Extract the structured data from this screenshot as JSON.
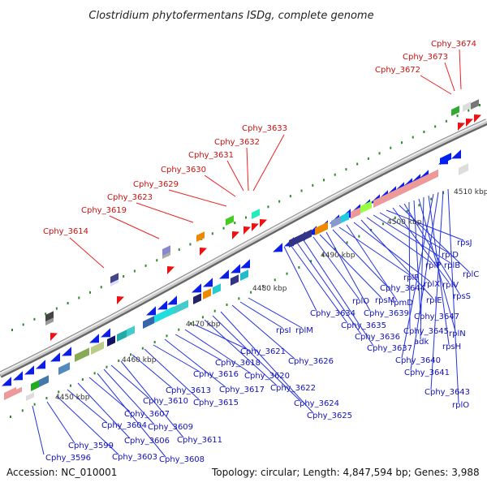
{
  "title": "Clostridium phytofermentans ISDg, complete genome",
  "footer": {
    "accession": "Accession: NC_010001",
    "summary": "Topology: circular; Length: 4,847,594 bp; Genes: 3,988"
  },
  "ticks": [
    "4450 kbp",
    "4460 kbp",
    "4470 kbp",
    "4480 kbp",
    "4490 kbp",
    "4500 kbp",
    "4510 kbp"
  ],
  "labels_bottom": [
    "Cphy_3596",
    "Cphy_3599",
    "Cphy_3603",
    "Cphy_3604",
    "Cphy_3606",
    "Cphy_3607",
    "Cphy_3608",
    "Cphy_3609",
    "Cphy_3610",
    "Cphy_3611",
    "Cphy_3613",
    "Cphy_3615",
    "Cphy_3616",
    "Cphy_3617",
    "Cphy_3618",
    "Cphy_3620",
    "Cphy_3621",
    "Cphy_3622",
    "Cphy_3624",
    "Cphy_3625",
    "Cphy_3626",
    "rpsI",
    "rplM",
    "Cphy_3634",
    "Cphy_3635",
    "Cphy_3636",
    "Cphy_3637",
    "rplO",
    "rpsM",
    "Cphy_3639",
    "Cphy_3644",
    "rplF",
    "rpmD",
    "rplX",
    "rplE",
    "rplP",
    "rplB",
    "rplD",
    "rpsJ",
    "rplV",
    "rplC",
    "rpsS",
    "Cphy_3645",
    "Cphy_3647",
    "rplN",
    "adk",
    "rpsH",
    "Cphy_3640",
    "Cphy_3641",
    "Cphy_3643",
    "rplO"
  ],
  "labels_top": [
    "Cphy_3614",
    "Cphy_3619",
    "Cphy_3623",
    "Cphy_3629",
    "Cphy_3630",
    "Cphy_3631",
    "Cphy_3632",
    "Cphy_3633",
    "Cphy_3672",
    "Cphy_3673",
    "Cphy_3674"
  ],
  "colors": {
    "forward_gene": "#0a1ee6",
    "top_arrow": "#ee1111",
    "leader_blue": "#2233dd",
    "leader_red": "#ee2222",
    "backbone": "#999999",
    "tick": "#2e8b2e"
  }
}
